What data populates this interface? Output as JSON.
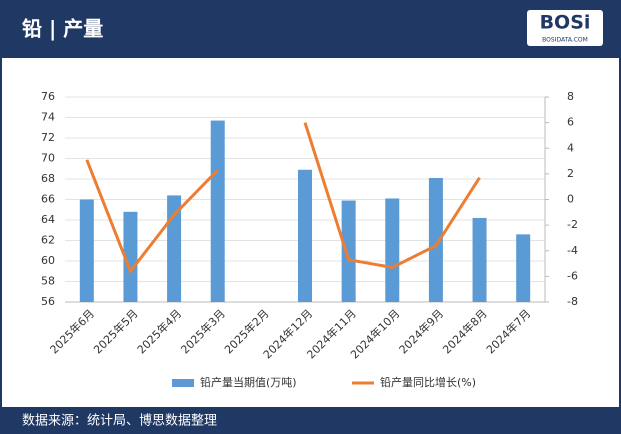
{
  "header": {
    "title": "铅 | 产量",
    "logo": "BOSi",
    "logo_sub": "BOSIDATA.COM"
  },
  "chart_data": {
    "type": "bar_line",
    "categories": [
      "2025年6月",
      "2025年5月",
      "2025年4月",
      "2025年3月",
      "2025年2月",
      "2024年12月",
      "2024年11月",
      "2024年10月",
      "2024年9月",
      "2024年8月",
      "2024年7月"
    ],
    "series": [
      {
        "name": "铅产量当期值(万吨)",
        "color": "#5b9bd5",
        "values": [
          66.0,
          64.8,
          66.4,
          73.7,
          null,
          68.9,
          65.9,
          66.1,
          68.1,
          64.2,
          62.6
        ]
      },
      {
        "name": "铅产量同比增长(%)",
        "color": "#ed7d31",
        "axis": "y2",
        "values": [
          3.1,
          -5.6,
          -1.2,
          2.3,
          null,
          6.0,
          -4.7,
          -5.3,
          -3.6,
          1.7,
          null
        ]
      }
    ],
    "ylim": [
      56,
      76
    ],
    "yticks": [
      56,
      58,
      60,
      62,
      64,
      66,
      68,
      70,
      72,
      74,
      76
    ],
    "y2lim": [
      -8,
      8
    ],
    "y2ticks": [
      -8,
      -6,
      -4,
      -2,
      0,
      2,
      4,
      6,
      8
    ],
    "legend": "bottom"
  },
  "footer": {
    "source": "数据来源：统计局、博思数据整理"
  }
}
